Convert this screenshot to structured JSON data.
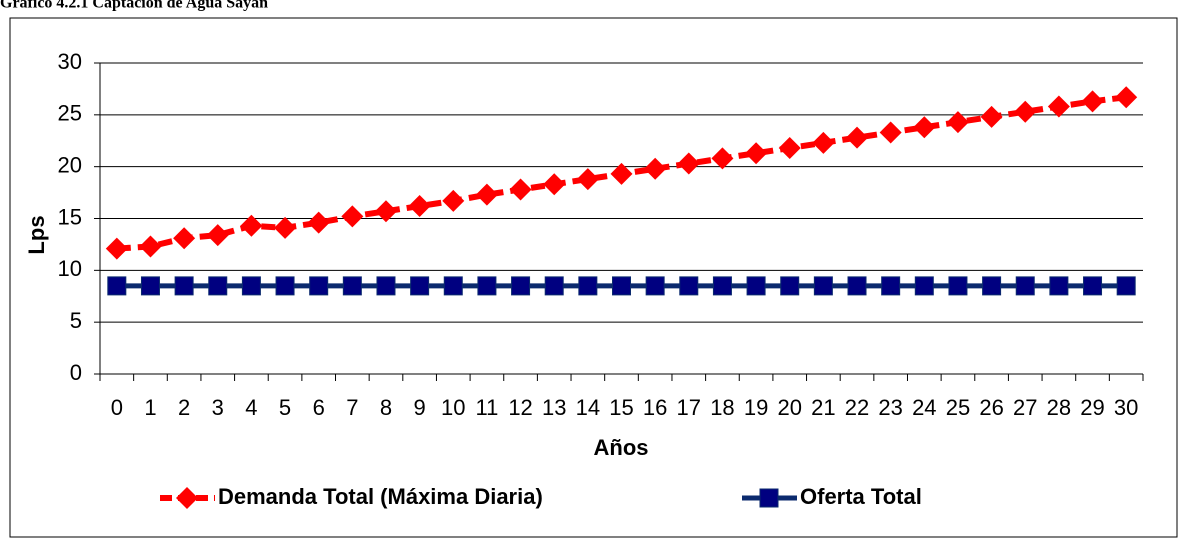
{
  "chart_data": {
    "type": "line",
    "title": "Gráfico 4.2.1 Captación de Agua Sayán",
    "y_label": "Lps",
    "x_label": "Años",
    "categories": [
      "0",
      "1",
      "2",
      "3",
      "4",
      "5",
      "6",
      "7",
      "8",
      "9",
      "10",
      "11",
      "12",
      "13",
      "14",
      "15",
      "16",
      "17",
      "18",
      "19",
      "20",
      "21",
      "22",
      "23",
      "24",
      "25",
      "26",
      "27",
      "28",
      "29",
      "30"
    ],
    "series": [
      {
        "name": "Demanda Total (Máxima Diaria)",
        "color": "#ff0000",
        "marker": "diamond",
        "dashed": true,
        "values": [
          12.1,
          12.3,
          13.1,
          13.4,
          14.3,
          14.1,
          14.6,
          15.2,
          15.7,
          16.2,
          16.7,
          17.3,
          17.8,
          18.3,
          18.8,
          19.3,
          19.8,
          20.3,
          20.8,
          21.3,
          21.8,
          22.3,
          22.8,
          23.3,
          23.8,
          24.3,
          24.8,
          25.3,
          25.8,
          26.3,
          26.7
        ]
      },
      {
        "name": "Oferta Total",
        "color": "#0b2a6e",
        "marker": "square",
        "dashed": false,
        "values": [
          8.5,
          8.5,
          8.5,
          8.5,
          8.5,
          8.5,
          8.5,
          8.5,
          8.5,
          8.5,
          8.5,
          8.5,
          8.5,
          8.5,
          8.5,
          8.5,
          8.5,
          8.5,
          8.5,
          8.5,
          8.5,
          8.5,
          8.5,
          8.5,
          8.5,
          8.5,
          8.5,
          8.5,
          8.5,
          8.5,
          8.5
        ]
      }
    ],
    "ylim": [
      0,
      30
    ],
    "yticks": [
      0,
      5,
      10,
      15,
      20,
      25,
      30
    ],
    "grid": true,
    "legend": "bottom"
  }
}
